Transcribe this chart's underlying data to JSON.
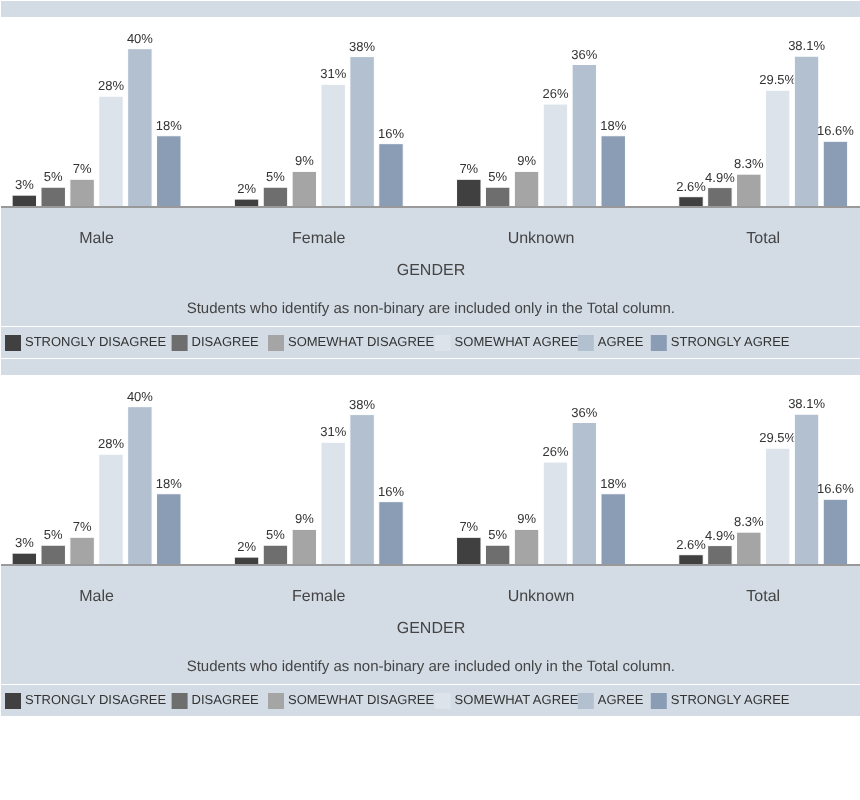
{
  "chart_data": [
    {
      "type": "bar",
      "xlabel": "GENDER",
      "annotations": [
        "Students who identify as non-binary are included only in the Total column."
      ],
      "categories": [
        "Male",
        "Female",
        "Unknown",
        "Total"
      ],
      "legend": "bottom",
      "tick_labels": "x",
      "series": [
        {
          "name": "STRONGLY DISAGREE",
          "color": "#404040",
          "values": [
            3,
            2,
            7,
            2.6
          ],
          "value_labels": [
            "3%",
            "2%",
            "7%",
            "2.6%"
          ]
        },
        {
          "name": "DISAGREE",
          "color": "#6e6e6e",
          "values": [
            5,
            5,
            5,
            4.9
          ],
          "value_labels": [
            "5%",
            "5%",
            "5%",
            "4.9%"
          ]
        },
        {
          "name": "SOMEWHAT DISAGREE",
          "color": "#a5a5a5",
          "values": [
            7,
            9,
            9,
            8.3
          ],
          "value_labels": [
            "7%",
            "9%",
            "9%",
            "8.3%"
          ]
        },
        {
          "name": "SOMEWHAT AGREE",
          "color": "#dce3ea",
          "values": [
            28,
            31,
            26,
            29.5
          ],
          "value_labels": [
            "28%",
            "31%",
            "26%",
            "29.5%"
          ]
        },
        {
          "name": "AGREE",
          "color": "#b2c0d0",
          "values": [
            40,
            38,
            36,
            38.1
          ],
          "value_labels": [
            "40%",
            "38%",
            "36%",
            "38.1%"
          ]
        },
        {
          "name": "STRONGLY AGREE",
          "color": "#8a9db5",
          "values": [
            18,
            16,
            18,
            16.6
          ],
          "value_labels": [
            "18%",
            "16%",
            "18%",
            "16.6%"
          ]
        }
      ]
    },
    {
      "type": "bar",
      "xlabel": "GENDER",
      "annotations": [
        "Students who identify as non-binary are included only in the Total column."
      ],
      "categories": [
        "Male",
        "Female",
        "Unknown",
        "Total"
      ],
      "legend": "bottom",
      "tick_labels": "x",
      "series": [
        {
          "name": "STRONGLY DISAGREE",
          "color": "#404040",
          "values": [
            3,
            2,
            7,
            2.6
          ],
          "value_labels": [
            "3%",
            "2%",
            "7%",
            "2.6%"
          ]
        },
        {
          "name": "DISAGREE",
          "color": "#6e6e6e",
          "values": [
            5,
            5,
            5,
            4.9
          ],
          "value_labels": [
            "5%",
            "5%",
            "5%",
            "4.9%"
          ]
        },
        {
          "name": "SOMEWHAT DISAGREE",
          "color": "#a5a5a5",
          "values": [
            7,
            9,
            9,
            8.3
          ],
          "value_labels": [
            "7%",
            "9%",
            "9%",
            "8.3%"
          ]
        },
        {
          "name": "SOMEWHAT AGREE",
          "color": "#dce3ea",
          "values": [
            28,
            31,
            26,
            29.5
          ],
          "value_labels": [
            "28%",
            "31%",
            "26%",
            "29.5%"
          ]
        },
        {
          "name": "AGREE",
          "color": "#b2c0d0",
          "values": [
            40,
            38,
            36,
            38.1
          ],
          "value_labels": [
            "40%",
            "38%",
            "36%",
            "38.1%"
          ]
        },
        {
          "name": "STRONGLY AGREE",
          "color": "#8a9db5",
          "values": [
            18,
            16,
            18,
            16.6
          ],
          "value_labels": [
            "18%",
            "16%",
            "18%",
            "16.6%"
          ]
        }
      ]
    }
  ]
}
